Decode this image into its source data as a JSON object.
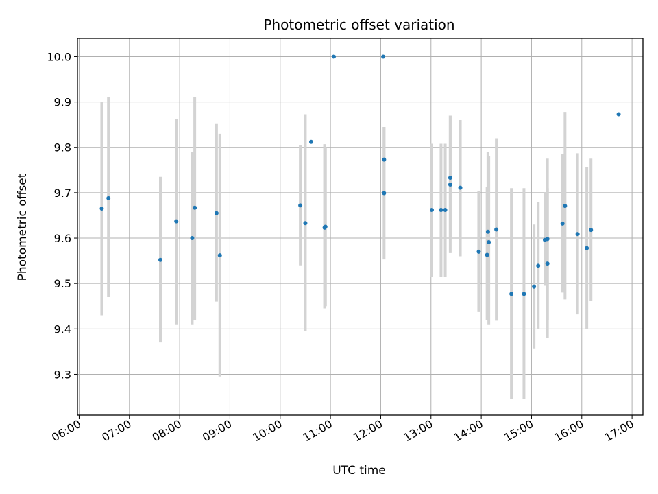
{
  "chart_data": {
    "type": "scatter",
    "title": "Photometric offset variation",
    "xlabel": "UTC time",
    "ylabel": "Photometric offset",
    "xlim": [
      "05:58",
      "17:13"
    ],
    "ylim": [
      9.21,
      10.04
    ],
    "x_ticks": [
      "06:00",
      "07:00",
      "08:00",
      "09:00",
      "10:00",
      "11:00",
      "12:00",
      "13:00",
      "14:00",
      "15:00",
      "16:00",
      "17:00"
    ],
    "y_ticks": [
      "9.3",
      "9.4",
      "9.5",
      "9.6",
      "9.7",
      "9.8",
      "9.9",
      "10.0"
    ],
    "grid": true,
    "point_color": "#1f77b4",
    "errorbar_color": "#d3d3d3",
    "points": [
      {
        "x": "06:27",
        "y": 9.665,
        "low": 9.43,
        "high": 9.9
      },
      {
        "x": "06:35",
        "y": 9.688,
        "low": 9.47,
        "high": 9.91
      },
      {
        "x": "07:37",
        "y": 9.552,
        "low": 9.37,
        "high": 9.735
      },
      {
        "x": "07:56",
        "y": 9.637,
        "low": 9.41,
        "high": 9.863
      },
      {
        "x": "08:15",
        "y": 9.6,
        "low": 9.41,
        "high": 9.79
      },
      {
        "x": "08:18",
        "y": 9.667,
        "low": 9.42,
        "high": 9.91
      },
      {
        "x": "08:44",
        "y": 9.655,
        "low": 9.46,
        "high": 9.853
      },
      {
        "x": "08:48",
        "y": 9.562,
        "low": 9.295,
        "high": 9.83
      },
      {
        "x": "10:24",
        "y": 9.672,
        "low": 9.54,
        "high": 9.805
      },
      {
        "x": "10:30",
        "y": 9.633,
        "low": 9.395,
        "high": 9.873
      },
      {
        "x": "10:37",
        "y": 9.812,
        "low": null,
        "high": null
      },
      {
        "x": "10:53",
        "y": 9.623,
        "low": 9.445,
        "high": 9.807
      },
      {
        "x": "10:54",
        "y": 9.625,
        "low": 9.45,
        "high": 9.8
      },
      {
        "x": "11:04",
        "y": 10.0,
        "low": null,
        "high": null
      },
      {
        "x": "12:03",
        "y": 10.0,
        "low": null,
        "high": null
      },
      {
        "x": "12:04",
        "y": 9.773,
        "low": 9.7,
        "high": 9.845
      },
      {
        "x": "12:04",
        "y": 9.699,
        "low": 9.553,
        "high": 9.845
      },
      {
        "x": "13:01",
        "y": 9.662,
        "low": 9.515,
        "high": 9.808
      },
      {
        "x": "13:12",
        "y": 9.662,
        "low": 9.515,
        "high": 9.808
      },
      {
        "x": "13:17",
        "y": 9.662,
        "low": 9.515,
        "high": 9.808
      },
      {
        "x": "13:23",
        "y": 9.733,
        "low": 9.598,
        "high": 9.87
      },
      {
        "x": "13:23",
        "y": 9.718,
        "low": 9.567,
        "high": 9.87
      },
      {
        "x": "13:35",
        "y": 9.711,
        "low": 9.56,
        "high": 9.86
      },
      {
        "x": "13:57",
        "y": 9.57,
        "low": 9.437,
        "high": 9.703
      },
      {
        "x": "14:07",
        "y": 9.563,
        "low": 9.42,
        "high": 9.712
      },
      {
        "x": "14:08",
        "y": 9.614,
        "low": 9.44,
        "high": 9.79
      },
      {
        "x": "14:09",
        "y": 9.591,
        "low": 9.41,
        "high": 9.78
      },
      {
        "x": "14:18",
        "y": 9.619,
        "low": 9.418,
        "high": 9.82
      },
      {
        "x": "14:36",
        "y": 9.477,
        "low": 9.245,
        "high": 9.71
      },
      {
        "x": "14:51",
        "y": 9.477,
        "low": 9.245,
        "high": 9.71
      },
      {
        "x": "15:03",
        "y": 9.493,
        "low": 9.357,
        "high": 9.63
      },
      {
        "x": "15:08",
        "y": 9.539,
        "low": 9.4,
        "high": 9.68
      },
      {
        "x": "15:16",
        "y": 9.596,
        "low": 9.495,
        "high": 9.7
      },
      {
        "x": "15:19",
        "y": 9.598,
        "low": 9.42,
        "high": 9.775
      },
      {
        "x": "15:19",
        "y": 9.544,
        "low": 9.38,
        "high": 9.71
      },
      {
        "x": "15:37",
        "y": 9.632,
        "low": 9.48,
        "high": 9.786
      },
      {
        "x": "15:40",
        "y": 9.671,
        "low": 9.465,
        "high": 9.878
      },
      {
        "x": "15:55",
        "y": 9.609,
        "low": 9.432,
        "high": 9.787
      },
      {
        "x": "16:06",
        "y": 9.578,
        "low": 9.4,
        "high": 9.756
      },
      {
        "x": "16:11",
        "y": 9.618,
        "low": 9.462,
        "high": 9.775
      },
      {
        "x": "16:44",
        "y": 9.873,
        "low": null,
        "high": null
      }
    ]
  }
}
